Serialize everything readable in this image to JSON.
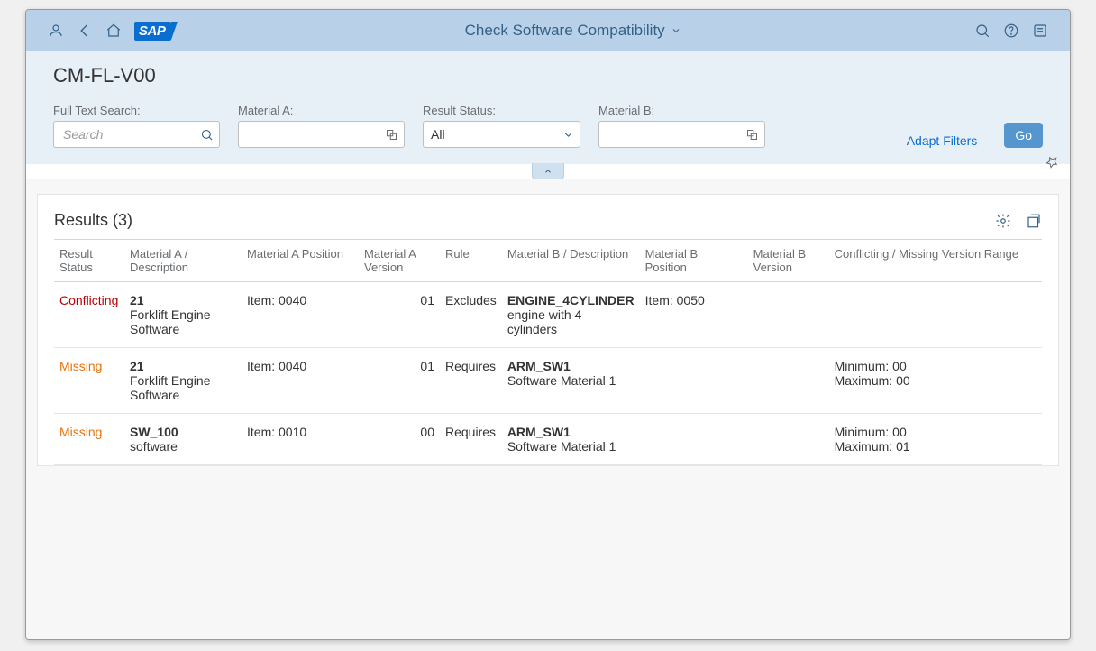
{
  "shell": {
    "title": "Check Software Compatibility",
    "logo_text": "SAP"
  },
  "page": {
    "title": "CM-FL-V00"
  },
  "filters": {
    "full_text_search": {
      "label": "Full Text Search:",
      "placeholder": "Search",
      "value": ""
    },
    "material_a": {
      "label": "Material A:",
      "placeholder": "",
      "value": ""
    },
    "result_status": {
      "label": "Result Status:",
      "value": "All"
    },
    "material_b": {
      "label": "Material B:",
      "placeholder": "",
      "value": ""
    },
    "adapt_filters_label": "Adapt Filters",
    "go_label": "Go"
  },
  "results": {
    "title": "Results (3)",
    "columns": {
      "status": "Result Status",
      "mat_a": "Material A / Description",
      "pos_a": "Material A Position",
      "ver_a": "Material A Version",
      "rule": "Rule",
      "mat_b": "Material B / Description",
      "pos_b": "Material B Position",
      "ver_b": "Material B Version",
      "range": "Conflicting / Missing Version Range"
    },
    "rows": [
      {
        "status": "Conflicting",
        "mat_a_title": "21",
        "mat_a_desc": "Forklift Engine Software",
        "pos_a": "Item: 0040",
        "ver_a": "01",
        "rule": "Excludes",
        "mat_b_title": "ENGINE_4CYLINDER",
        "mat_b_desc": "engine with 4 cylinders",
        "pos_b": "Item: 0050",
        "ver_b": "",
        "range_min": "",
        "range_max": ""
      },
      {
        "status": "Missing",
        "mat_a_title": "21",
        "mat_a_desc": "Forklift Engine Software",
        "pos_a": "Item: 0040",
        "ver_a": "01",
        "rule": "Requires",
        "mat_b_title": "ARM_SW1",
        "mat_b_desc": "Software Material 1",
        "pos_b": "",
        "ver_b": "",
        "range_min": "Minimum: 00",
        "range_max": "Maximum: 00"
      },
      {
        "status": "Missing",
        "mat_a_title": "SW_100",
        "mat_a_desc": "software",
        "pos_a": "Item: 0010",
        "ver_a": "00",
        "rule": "Requires",
        "mat_b_title": "ARM_SW1",
        "mat_b_desc": "Software Material 1",
        "pos_b": "",
        "ver_b": "",
        "range_min": "Minimum: 00",
        "range_max": "Maximum: 01"
      }
    ]
  }
}
